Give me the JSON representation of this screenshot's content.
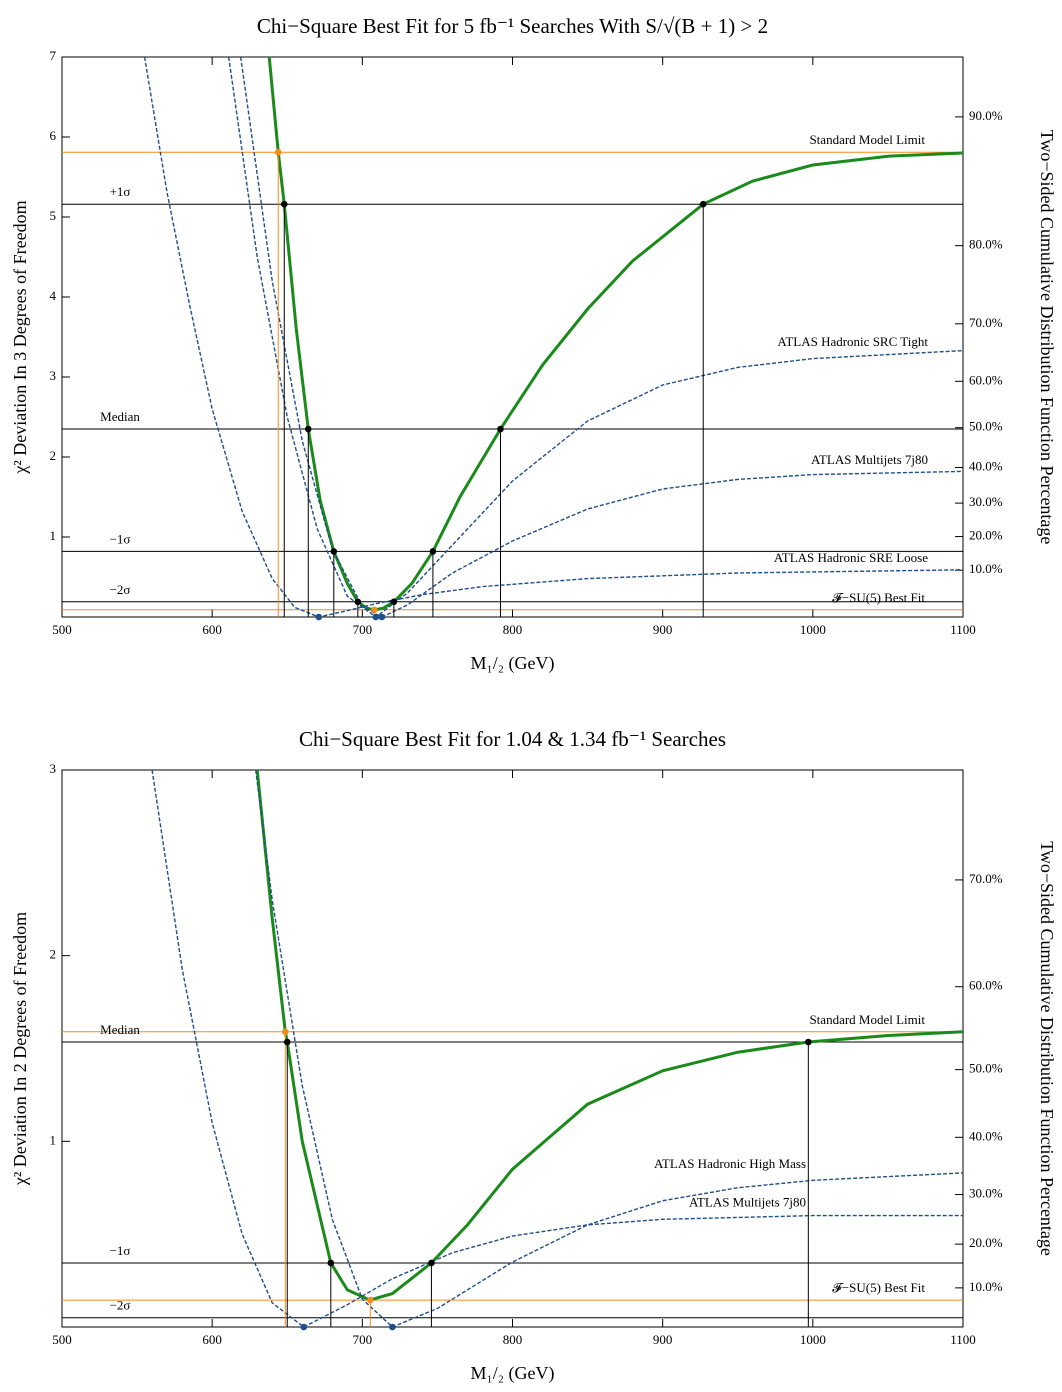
{
  "chart_data": [
    {
      "type": "line",
      "title": "Chi−Square Best Fit for 5 fb⁻¹ Searches With S/√(B + 1) > 2",
      "x_label": "M₁/₂ (GeV)",
      "y_label": "χ² Deviation In 3 Degrees of Freedom",
      "y2_label": "Two−Sided Cumulative Distribution Function Percentage",
      "xlim": [
        500,
        1100
      ],
      "xticks": [
        500,
        600,
        700,
        800,
        900,
        1000,
        1100
      ],
      "ylim": [
        0,
        7
      ],
      "yticks": [
        1,
        2,
        3,
        4,
        5,
        6,
        7
      ],
      "y2scale": "chi2-cdf",
      "dof": 3,
      "y2ticks": [
        {
          "value": 10,
          "label": "10.0%"
        },
        {
          "value": 20,
          "label": "20.0%"
        },
        {
          "value": 30,
          "label": "30.0%"
        },
        {
          "value": 40,
          "label": "40.0%"
        },
        {
          "value": 50,
          "label": "50.0%"
        },
        {
          "value": 60,
          "label": "60.0%"
        },
        {
          "value": 70,
          "label": "70.0%"
        },
        {
          "value": 80,
          "label": "80.0%"
        },
        {
          "value": 90,
          "label": "90.0%"
        }
      ],
      "hlines": [
        {
          "label": "Standard Model Limit",
          "value": 5.81,
          "color": "#f28c1c"
        },
        {
          "label": "+1σ",
          "value": 5.16,
          "color": "#000000"
        },
        {
          "label": "Median",
          "value": 2.35,
          "color": "#000000"
        },
        {
          "label": "−1σ",
          "value": 0.82,
          "color": "#000000"
        },
        {
          "label": "−2σ",
          "value": 0.19,
          "color": "#000000"
        },
        {
          "label": "𝓕−SU(5) Best Fit",
          "value": 0.09,
          "color": "#f28c1c"
        }
      ],
      "series": [
        {
          "color": "#1a8a1a",
          "style": "solid",
          "x": [
            638,
            644,
            648,
            656,
            664,
            672,
            681,
            690,
            697,
            703,
            708,
            714,
            721,
            733,
            747,
            765,
            792,
            820,
            850,
            880,
            927,
            960,
            1000,
            1050,
            1100
          ],
          "values": [
            7.0,
            5.81,
            5.16,
            3.6,
            2.35,
            1.45,
            0.82,
            0.42,
            0.19,
            0.11,
            0.09,
            0.11,
            0.19,
            0.42,
            0.82,
            1.5,
            2.35,
            3.15,
            3.85,
            4.45,
            5.16,
            5.45,
            5.65,
            5.76,
            5.8
          ]
        },
        {
          "name": "ATLAS Hadronic SRC Tight",
          "color": "#1f4e8c",
          "style": "dashed",
          "x": [
            611,
            630,
            650,
            670,
            690,
            709,
            730,
            760,
            800,
            850,
            900,
            950,
            1000,
            1100
          ],
          "values": [
            7.0,
            4.5,
            2.5,
            1.1,
            0.26,
            0,
            0.3,
            0.9,
            1.7,
            2.45,
            2.9,
            3.12,
            3.23,
            3.33
          ]
        },
        {
          "name": "ATLAS Multijets 7j80",
          "color": "#1f4e8c",
          "style": "dashed",
          "x": [
            619,
            640,
            660,
            680,
            700,
            713,
            730,
            760,
            800,
            850,
            900,
            950,
            1000,
            1100
          ],
          "values": [
            7.0,
            4.2,
            2.2,
            0.85,
            0.13,
            0,
            0.15,
            0.55,
            0.95,
            1.35,
            1.6,
            1.72,
            1.78,
            1.82
          ]
        },
        {
          "name": "ATLAS Hadronic SRE Loose",
          "color": "#1f4e8c",
          "style": "dashed",
          "x": [
            555,
            570,
            585,
            600,
            620,
            640,
            655,
            671,
            690,
            710,
            740,
            780,
            850,
            950,
            1100
          ],
          "values": [
            7.0,
            5.3,
            3.9,
            2.6,
            1.32,
            0.48,
            0.12,
            0,
            0.08,
            0.17,
            0.28,
            0.38,
            0.48,
            0.55,
            0.59
          ]
        }
      ],
      "points": [
        {
          "x": 644,
          "y": 5.81,
          "color": "#f28c1c"
        },
        {
          "x": 708,
          "y": 0.09,
          "color": "#f28c1c"
        },
        {
          "x": 648,
          "y": 5.16,
          "color": "#000000"
        },
        {
          "x": 664,
          "y": 2.35,
          "color": "#000000"
        },
        {
          "x": 681,
          "y": 0.82,
          "color": "#000000"
        },
        {
          "x": 697,
          "y": 0.19,
          "color": "#000000"
        },
        {
          "x": 721,
          "y": 0.19,
          "color": "#000000"
        },
        {
          "x": 747,
          "y": 0.82,
          "color": "#000000"
        },
        {
          "x": 792,
          "y": 2.35,
          "color": "#000000"
        },
        {
          "x": 927,
          "y": 5.16,
          "color": "#000000"
        },
        {
          "x": 671,
          "y": 0,
          "color": "#1f4e8c"
        },
        {
          "x": 709,
          "y": 0,
          "color": "#1f4e8c"
        },
        {
          "x": 713,
          "y": 0,
          "color": "#1f4e8c"
        }
      ]
    },
    {
      "type": "line",
      "title": "Chi−Square Best Fit for 1.04 & 1.34 fb⁻¹ Searches",
      "x_label": "M₁/₂ (GeV)",
      "y_label": "χ² Deviation In 2 Degrees of Freedom",
      "y2_label": "Two−Sided Cumulative Distribution Function Percentage",
      "xlim": [
        500,
        1100
      ],
      "xticks": [
        500,
        600,
        700,
        800,
        900,
        1000,
        1100
      ],
      "ylim": [
        0,
        3
      ],
      "yticks": [
        1,
        2,
        3
      ],
      "y2scale": "chi2-cdf",
      "dof": 2,
      "y2ticks": [
        {
          "value": 10,
          "label": "10.0%"
        },
        {
          "value": 20,
          "label": "20.0%"
        },
        {
          "value": 30,
          "label": "30.0%"
        },
        {
          "value": 40,
          "label": "40.0%"
        },
        {
          "value": 50,
          "label": "50.0%"
        },
        {
          "value": 60,
          "label": "60.0%"
        },
        {
          "value": 70,
          "label": "70.0%"
        }
      ],
      "hlines": [
        {
          "label": "Standard Model Limit",
          "value": 1.59,
          "color": "#f28c1c"
        },
        {
          "label": "Median",
          "value": 1.535,
          "color": "#000000"
        },
        {
          "label": "−1σ",
          "value": 0.345,
          "color": "#000000"
        },
        {
          "label": "𝓕−SU(5) Best Fit",
          "value": 0.145,
          "color": "#f28c1c"
        },
        {
          "label": "−2σ",
          "value": 0.05,
          "color": "#000000"
        }
      ],
      "series": [
        {
          "color": "#1a8a1a",
          "style": "solid",
          "x": [
            630,
            640,
            648.7,
            650,
            660,
            679,
            690,
            705,
            720,
            746,
            770,
            800,
            850,
            900,
            950,
            997,
            1050,
            1100
          ],
          "values": [
            3.0,
            2.2,
            1.59,
            1.535,
            1.0,
            0.345,
            0.2,
            0.145,
            0.18,
            0.345,
            0.55,
            0.85,
            1.2,
            1.38,
            1.48,
            1.535,
            1.57,
            1.59
          ]
        },
        {
          "name": "ATLAS Hadronic High Mass",
          "color": "#1f4e8c",
          "style": "dashed",
          "x": [
            629,
            640,
            660,
            680,
            700,
            720,
            750,
            800,
            850,
            900,
            950,
            1000,
            1100
          ],
          "values": [
            3.0,
            2.3,
            1.3,
            0.58,
            0.15,
            0,
            0.1,
            0.35,
            0.55,
            0.68,
            0.75,
            0.79,
            0.83
          ]
        },
        {
          "name": "ATLAS Multijets 7j80",
          "color": "#1f4e8c",
          "style": "dashed",
          "x": [
            560,
            580,
            600,
            620,
            640,
            661,
            690,
            720,
            760,
            800,
            850,
            900,
            1000,
            1100
          ],
          "values": [
            3.0,
            1.93,
            1.1,
            0.5,
            0.13,
            0,
            0.12,
            0.26,
            0.4,
            0.49,
            0.55,
            0.58,
            0.6,
            0.6
          ]
        }
      ],
      "points": [
        {
          "x": 648.7,
          "y": 1.59,
          "color": "#f28c1c"
        },
        {
          "x": 705.3,
          "y": 0.145,
          "color": "#f28c1c"
        },
        {
          "x": 650,
          "y": 1.535,
          "color": "#000000"
        },
        {
          "x": 679,
          "y": 0.345,
          "color": "#000000"
        },
        {
          "x": 746,
          "y": 0.345,
          "color": "#000000"
        },
        {
          "x": 997,
          "y": 1.535,
          "color": "#000000"
        },
        {
          "x": 661,
          "y": 0,
          "color": "#1f4e8c"
        },
        {
          "x": 720,
          "y": 0,
          "color": "#1f4e8c"
        }
      ]
    }
  ]
}
